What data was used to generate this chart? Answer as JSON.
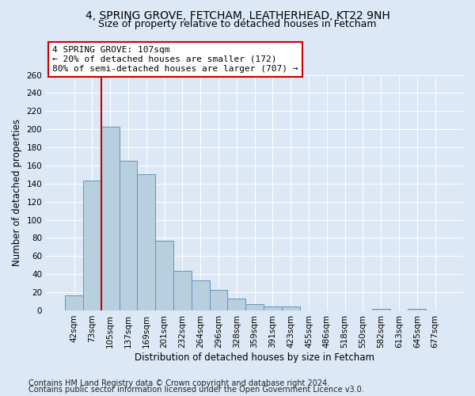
{
  "title_line1": "4, SPRING GROVE, FETCHAM, LEATHERHEAD, KT22 9NH",
  "title_line2": "Size of property relative to detached houses in Fetcham",
  "xlabel": "Distribution of detached houses by size in Fetcham",
  "ylabel": "Number of detached properties",
  "categories": [
    "42sqm",
    "73sqm",
    "105sqm",
    "137sqm",
    "169sqm",
    "201sqm",
    "232sqm",
    "264sqm",
    "296sqm",
    "328sqm",
    "359sqm",
    "391sqm",
    "423sqm",
    "455sqm",
    "486sqm",
    "518sqm",
    "550sqm",
    "582sqm",
    "613sqm",
    "645sqm",
    "677sqm"
  ],
  "values": [
    17,
    143,
    203,
    165,
    150,
    77,
    44,
    33,
    23,
    13,
    7,
    4,
    4,
    0,
    0,
    0,
    0,
    2,
    0,
    2,
    0
  ],
  "bar_color": "#b8cfe0",
  "bar_edge_color": "#6494b7",
  "property_line_x": 2,
  "annotation_text": "4 SPRING GROVE: 107sqm\n← 20% of detached houses are smaller (172)\n80% of semi-detached houses are larger (707) →",
  "annotation_box_color": "#ffffff",
  "annotation_box_edge": "#cc0000",
  "vline_color": "#cc0000",
  "ylim": [
    0,
    260
  ],
  "yticks": [
    0,
    20,
    40,
    60,
    80,
    100,
    120,
    140,
    160,
    180,
    200,
    220,
    240,
    260
  ],
  "footer_line1": "Contains HM Land Registry data © Crown copyright and database right 2024.",
  "footer_line2": "Contains public sector information licensed under the Open Government Licence v3.0.",
  "background_color": "#dce8f5",
  "title1_fontsize": 10,
  "title2_fontsize": 9,
  "axis_label_fontsize": 8.5,
  "tick_fontsize": 7.5,
  "footer_fontsize": 7,
  "annotation_fontsize": 8
}
